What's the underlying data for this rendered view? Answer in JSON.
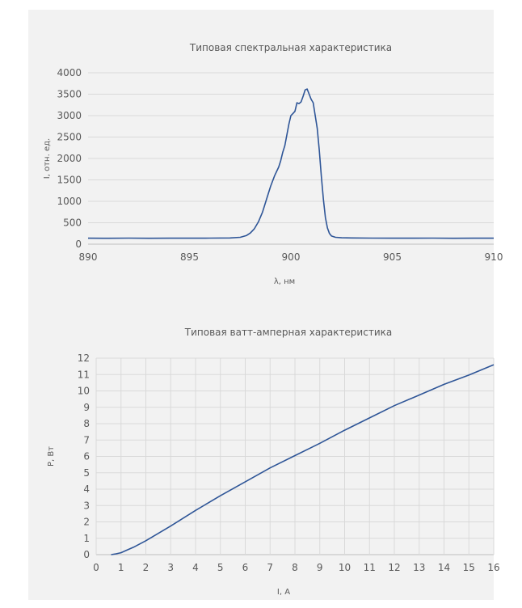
{
  "chart_data": [
    {
      "type": "line",
      "title": "Типовая спектральная характеристика",
      "xlabel": "λ, нм",
      "ylabel": "I, отн. ед.",
      "xlim": [
        890,
        910
      ],
      "ylim": [
        0,
        4000
      ],
      "xticks": [
        "890",
        "895",
        "900",
        "905",
        "910"
      ],
      "yticks": [
        "0",
        "500",
        "1000",
        "1500",
        "2000",
        "2500",
        "3000",
        "3500",
        "4000"
      ],
      "grid": "horizontal",
      "series": [
        {
          "color": "#2e5597",
          "x": [
            890,
            891,
            892,
            893,
            894,
            895,
            896,
            897,
            897.5,
            897.8,
            898.0,
            898.2,
            898.4,
            898.6,
            898.8,
            899.0,
            899.2,
            899.3,
            899.4,
            899.5,
            899.6,
            899.7,
            899.8,
            899.9,
            900.0,
            900.1,
            900.2,
            900.3,
            900.4,
            900.5,
            900.6,
            900.7,
            900.8,
            900.9,
            901.0,
            901.1,
            901.2,
            901.3,
            901.4,
            901.5,
            901.6,
            901.7,
            901.8,
            901.9,
            902.0,
            902.2,
            902.5,
            903,
            904,
            905,
            906,
            907,
            908,
            909,
            910
          ],
          "y": [
            140,
            138,
            142,
            138,
            140,
            140,
            142,
            145,
            160,
            200,
            260,
            360,
            520,
            750,
            1050,
            1350,
            1600,
            1700,
            1800,
            1950,
            2150,
            2300,
            2550,
            2800,
            3000,
            3050,
            3100,
            3300,
            3280,
            3320,
            3450,
            3600,
            3620,
            3500,
            3380,
            3300,
            3000,
            2700,
            2200,
            1600,
            1050,
            620,
            380,
            250,
            190,
            160,
            150,
            145,
            142,
            140,
            140,
            142,
            138,
            140,
            140
          ]
        }
      ]
    },
    {
      "type": "line",
      "title": "Типовая ватт-амперная характеристика",
      "xlabel": "I, A",
      "ylabel": "P, Вт",
      "xlim": [
        0,
        16
      ],
      "ylim": [
        0,
        12
      ],
      "xticks": [
        "0",
        "1",
        "2",
        "3",
        "4",
        "5",
        "6",
        "7",
        "8",
        "9",
        "10",
        "11",
        "12",
        "13",
        "14",
        "15",
        "16"
      ],
      "yticks": [
        "0",
        "1",
        "2",
        "3",
        "4",
        "5",
        "6",
        "7",
        "8",
        "9",
        "10",
        "11",
        "12"
      ],
      "grid": "both",
      "series": [
        {
          "color": "#2e5597",
          "x": [
            0.6,
            0.8,
            1.0,
            1.2,
            1.5,
            2,
            3,
            4,
            5,
            6,
            7,
            8,
            9,
            10,
            11,
            12,
            13,
            14,
            15,
            16
          ],
          "y": [
            0,
            0.05,
            0.12,
            0.25,
            0.45,
            0.85,
            1.75,
            2.7,
            3.6,
            4.45,
            5.3,
            6.05,
            6.8,
            7.6,
            8.35,
            9.1,
            9.75,
            10.4,
            10.97,
            11.6
          ]
        }
      ]
    }
  ]
}
